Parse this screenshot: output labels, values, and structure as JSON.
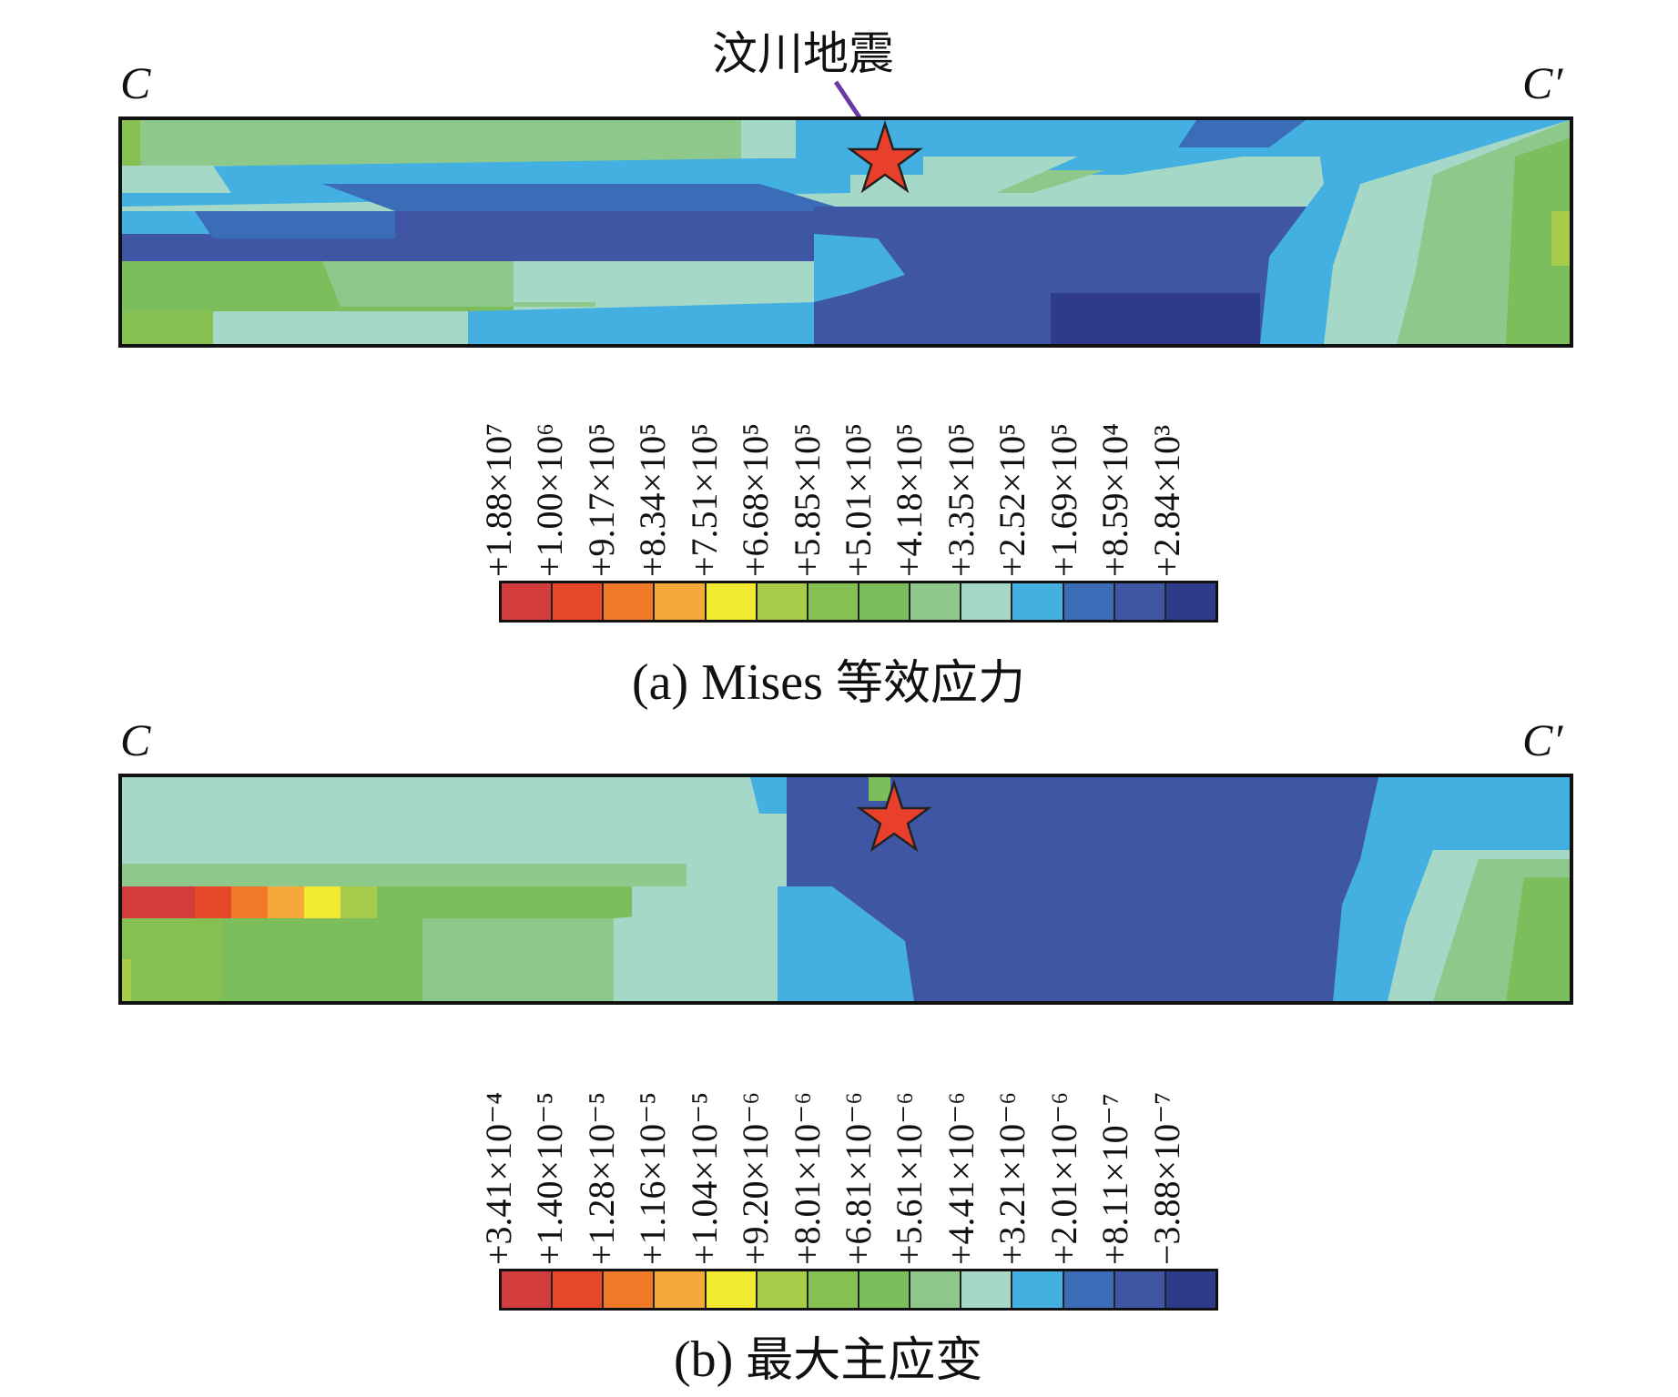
{
  "figure_a": {
    "left_label": "C",
    "right_label": "C′",
    "epicenter_label": "汶川地震",
    "caption_prefix": "(a) Mises",
    "caption_cjk": "等效应力",
    "legend_values": [
      "+1.88×10⁷",
      "+1.00×10⁶",
      "+9.17×10⁵",
      "+8.34×10⁵",
      "+7.51×10⁵",
      "+6.68×10⁵",
      "+5.85×10⁵",
      "+5.01×10⁵",
      "+4.18×10⁵",
      "+3.35×10⁵",
      "+2.52×10⁵",
      "+1.69×10⁵",
      "+8.59×10⁴",
      "+2.84×10³"
    ]
  },
  "figure_b": {
    "left_label": "C",
    "right_label": "C′",
    "caption_prefix": "(b)",
    "caption_cjk": "最大主应变",
    "legend_values": [
      "+3.41×10⁻⁴",
      "+1.40×10⁻⁵",
      "+1.28×10⁻⁵",
      "+1.16×10⁻⁵",
      "+1.04×10⁻⁵",
      "+9.20×10⁻⁶",
      "+8.01×10⁻⁶",
      "+6.81×10⁻⁶",
      "+5.61×10⁻⁶",
      "+4.41×10⁻⁶",
      "+3.21×10⁻⁶",
      "+2.01×10⁻⁶",
      "+8.11×10⁻⁷",
      "−3.88×10⁻⁷"
    ]
  },
  "colors": {
    "scale": [
      "#d23c3c",
      "#e8482a",
      "#f07a28",
      "#f7a83a",
      "#f2ea30",
      "#a8cc4a",
      "#86c052",
      "#7cbd5c",
      "#8ec88a",
      "#a6d8c8",
      "#44b0e2",
      "#3a6cb8",
      "#3e56a4",
      "#2e3a8a"
    ],
    "star": "#e8402a"
  }
}
